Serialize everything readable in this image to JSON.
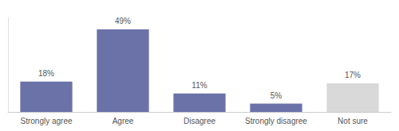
{
  "chart_data": {
    "type": "bar",
    "categories": [
      "Strongly agree",
      "Agree",
      "Disagree",
      "Strongly disagree",
      "Not sure"
    ],
    "values": [
      18,
      49,
      11,
      5,
      17
    ],
    "value_labels": [
      "18%",
      "49%",
      "11%",
      "5%",
      "17%"
    ],
    "colors": [
      "#6b72a8",
      "#6b72a8",
      "#6b72a8",
      "#6b72a8",
      "#d9d9d9"
    ],
    "ylim": [
      0,
      56
    ],
    "data_labels": true,
    "tick_labels": "x",
    "grid": false
  }
}
